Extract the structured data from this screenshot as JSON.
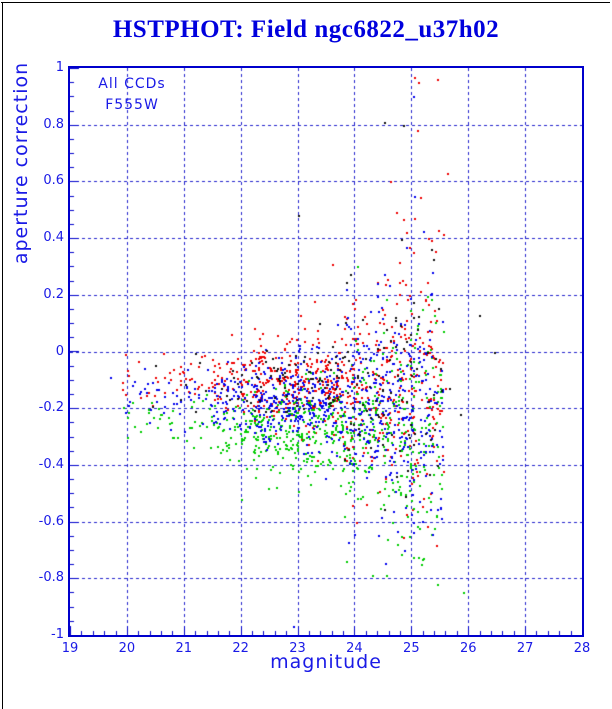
{
  "window": {
    "background": "#ffffff",
    "border_color": "#000000"
  },
  "chart_data": {
    "type": "scatter",
    "title": "HSTPHOT: Field ngc6822_u37h02",
    "xlabel": "magnitude",
    "ylabel": "aperture correction",
    "xlim": [
      19,
      28
    ],
    "ylim": [
      -1,
      1
    ],
    "x_ticks": [
      19,
      20,
      21,
      22,
      23,
      24,
      25,
      26,
      27,
      28
    ],
    "x_tick_labels": [
      "19",
      "20",
      "21",
      "22",
      "23",
      "24",
      "25",
      "26",
      "27",
      "28"
    ],
    "y_ticks": [
      -1,
      -0.8,
      -0.6,
      -0.4,
      -0.2,
      0,
      0.2,
      0.4,
      0.6,
      0.8,
      1
    ],
    "y_tick_labels": [
      "-1",
      "-0.8",
      "-0.6",
      "-0.4",
      "-0.2",
      "0",
      "0.2",
      "0.4",
      "0.6",
      "0.8",
      "1"
    ],
    "x_minor_step": 0.2,
    "y_minor_step": 0.05,
    "grid": "dashed on major ticks",
    "annotations": [
      {
        "text": "All CCDs"
      },
      {
        "text": "F555W"
      }
    ],
    "colors": {
      "title": "#0000dd",
      "axis_text": "#1a1ae6",
      "frame": "#0000cc",
      "grid": "#2222cc"
    },
    "point_seed": 1234567,
    "point_size": 2,
    "series": [
      {
        "name": "ccd-red",
        "color": "#ee0000",
        "strata": [
          [
            12,
            19.8,
            20.5,
            -0.1,
            0.05,
            0,
            0,
            0
          ],
          [
            30,
            20.5,
            21.5,
            -0.1,
            0.05,
            0,
            0,
            0
          ],
          [
            55,
            21.5,
            22.2,
            -0.11,
            0.06,
            0.02,
            0.15,
            0.15
          ],
          [
            130,
            22.2,
            23.0,
            -0.11,
            0.07,
            0.03,
            0.2,
            0.2
          ],
          [
            130,
            23.0,
            23.8,
            -0.12,
            0.09,
            0.05,
            0.3,
            0.3
          ],
          [
            120,
            23.8,
            24.5,
            -0.12,
            0.13,
            0.1,
            0.5,
            0.5
          ],
          [
            100,
            24.5,
            25.05,
            -0.12,
            0.17,
            0.13,
            0.65,
            0.6
          ],
          [
            80,
            25.0,
            25.55,
            -0.12,
            0.2,
            0.15,
            0.7,
            0.65
          ]
        ],
        "outliers": [
          [
            25.05,
            0.97
          ],
          [
            25.12,
            0.95
          ],
          [
            25.45,
            0.96
          ],
          [
            25.1,
            0.78
          ],
          [
            25.62,
            0.63
          ],
          [
            24.62,
            0.6
          ],
          [
            25.3,
            0.4
          ],
          [
            24.9,
            0.42
          ],
          [
            23.6,
            0.31
          ],
          [
            25.55,
            -0.42
          ],
          [
            25.6,
            -0.13
          ]
        ]
      },
      {
        "name": "ccd-green",
        "color": "#00cc00",
        "strata": [
          [
            12,
            19.9,
            20.5,
            -0.25,
            0.05,
            0,
            0,
            0
          ],
          [
            30,
            20.5,
            21.5,
            -0.26,
            0.055,
            0,
            0,
            0
          ],
          [
            55,
            21.5,
            22.2,
            -0.27,
            0.065,
            0.02,
            0.12,
            0.18
          ],
          [
            130,
            22.2,
            23.0,
            -0.27,
            0.075,
            0.03,
            0.15,
            0.25
          ],
          [
            130,
            23.0,
            23.8,
            -0.28,
            0.095,
            0.05,
            0.22,
            0.35
          ],
          [
            120,
            23.8,
            24.5,
            -0.28,
            0.135,
            0.1,
            0.35,
            0.5
          ],
          [
            100,
            24.5,
            25.05,
            -0.28,
            0.175,
            0.13,
            0.5,
            0.55
          ],
          [
            80,
            25.0,
            25.55,
            -0.28,
            0.2,
            0.15,
            0.55,
            0.6
          ]
        ],
        "outliers": [
          [
            25.9,
            -0.85
          ],
          [
            25.45,
            -0.82
          ],
          [
            24.3,
            -0.79
          ],
          [
            23.85,
            -0.74
          ],
          [
            24.05,
            0.3
          ],
          [
            24.5,
            0.07
          ],
          [
            22.0,
            -0.52
          ]
        ]
      },
      {
        "name": "ccd-blue",
        "color": "#0000ee",
        "strata": [
          [
            14,
            19.9,
            20.5,
            -0.15,
            0.05,
            0,
            0,
            0
          ],
          [
            32,
            20.5,
            21.5,
            -0.16,
            0.05,
            0,
            0,
            0
          ],
          [
            60,
            21.5,
            22.2,
            -0.17,
            0.06,
            0.02,
            0.14,
            0.16
          ],
          [
            140,
            22.2,
            23.0,
            -0.17,
            0.07,
            0.03,
            0.18,
            0.22
          ],
          [
            140,
            23.0,
            23.8,
            -0.18,
            0.09,
            0.05,
            0.26,
            0.32
          ],
          [
            125,
            23.8,
            24.5,
            -0.18,
            0.135,
            0.1,
            0.45,
            0.5
          ],
          [
            105,
            24.5,
            25.05,
            -0.19,
            0.175,
            0.13,
            0.6,
            0.6
          ],
          [
            80,
            25.0,
            25.55,
            -0.19,
            0.205,
            0.15,
            0.65,
            0.65
          ]
        ],
        "outliers": [
          [
            19.7,
            -0.09
          ],
          [
            25.03,
            0.9
          ],
          [
            25.05,
            0.55
          ],
          [
            23.85,
            0.22
          ],
          [
            22.92,
            -0.97
          ],
          [
            25.5,
            -0.55
          ]
        ]
      },
      {
        "name": "ccd-black",
        "color": "#111111",
        "strata": [
          [
            2,
            20.2,
            20.9,
            -0.12,
            0.045,
            0,
            0,
            0
          ],
          [
            6,
            20.9,
            21.6,
            -0.12,
            0.05,
            0,
            0,
            0
          ],
          [
            12,
            21.6,
            22.2,
            -0.12,
            0.055,
            0,
            0,
            0
          ],
          [
            30,
            22.2,
            23.0,
            -0.11,
            0.065,
            0.03,
            0.18,
            0.18
          ],
          [
            35,
            23.0,
            23.8,
            -0.11,
            0.085,
            0.05,
            0.28,
            0.28
          ],
          [
            35,
            23.8,
            24.5,
            -0.11,
            0.12,
            0.08,
            0.45,
            0.45
          ],
          [
            28,
            24.5,
            25.05,
            -0.11,
            0.16,
            0.1,
            0.6,
            0.55
          ],
          [
            20,
            25.0,
            25.55,
            -0.11,
            0.19,
            0.12,
            0.6,
            0.6
          ]
        ],
        "outliers": [
          [
            24.52,
            0.81
          ],
          [
            24.85,
            0.8
          ],
          [
            26.19,
            0.13
          ],
          [
            26.45,
            0.0
          ],
          [
            25.85,
            -0.22
          ],
          [
            25.66,
            -0.13
          ],
          [
            23.0,
            0.48
          ]
        ]
      }
    ]
  }
}
